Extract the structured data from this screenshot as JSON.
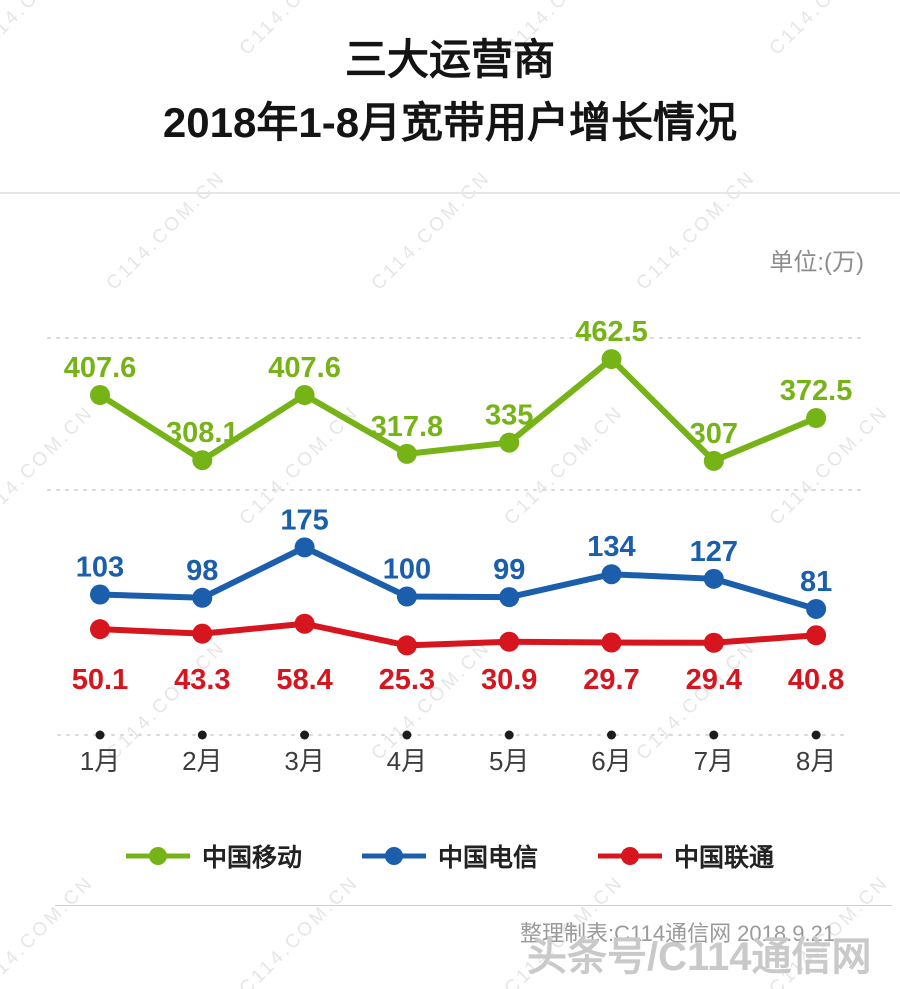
{
  "page": {
    "title_line1": "三大运营商",
    "title_line2": "2018年1-8月宽带用户增长情况",
    "unit_label": "单位:(万)",
    "watermark": "C114.COM.CN",
    "footer_credit": "整理制表:C114通信网 2018.9.21",
    "footer_watermark": "头条号/C114通信网"
  },
  "chart_data": {
    "type": "line",
    "title": "三大运营商 2018年1-8月宽带用户增长情况",
    "unit": "万",
    "categories": [
      "1月",
      "2月",
      "3月",
      "4月",
      "5月",
      "6月",
      "7月",
      "8月"
    ],
    "series": [
      {
        "name": "中国移动",
        "color": "#76b317",
        "label_position": "above",
        "values": [
          407.6,
          308.1,
          407.6,
          317.8,
          335,
          462.5,
          307,
          372.5
        ]
      },
      {
        "name": "中国电信",
        "color": "#1b5eab",
        "label_position": "above",
        "values": [
          103,
          98,
          175,
          100,
          99,
          134,
          127,
          81
        ]
      },
      {
        "name": "中国联通",
        "color": "#d6151f",
        "label_position": "below",
        "values": [
          50.1,
          43.3,
          58.4,
          25.3,
          30.9,
          29.7,
          29.4,
          40.8
        ]
      }
    ],
    "ylim": [
      0,
      500
    ],
    "grid": "dotted-horizontal",
    "legend_position": "bottom",
    "xaxis_marker": "dot"
  }
}
